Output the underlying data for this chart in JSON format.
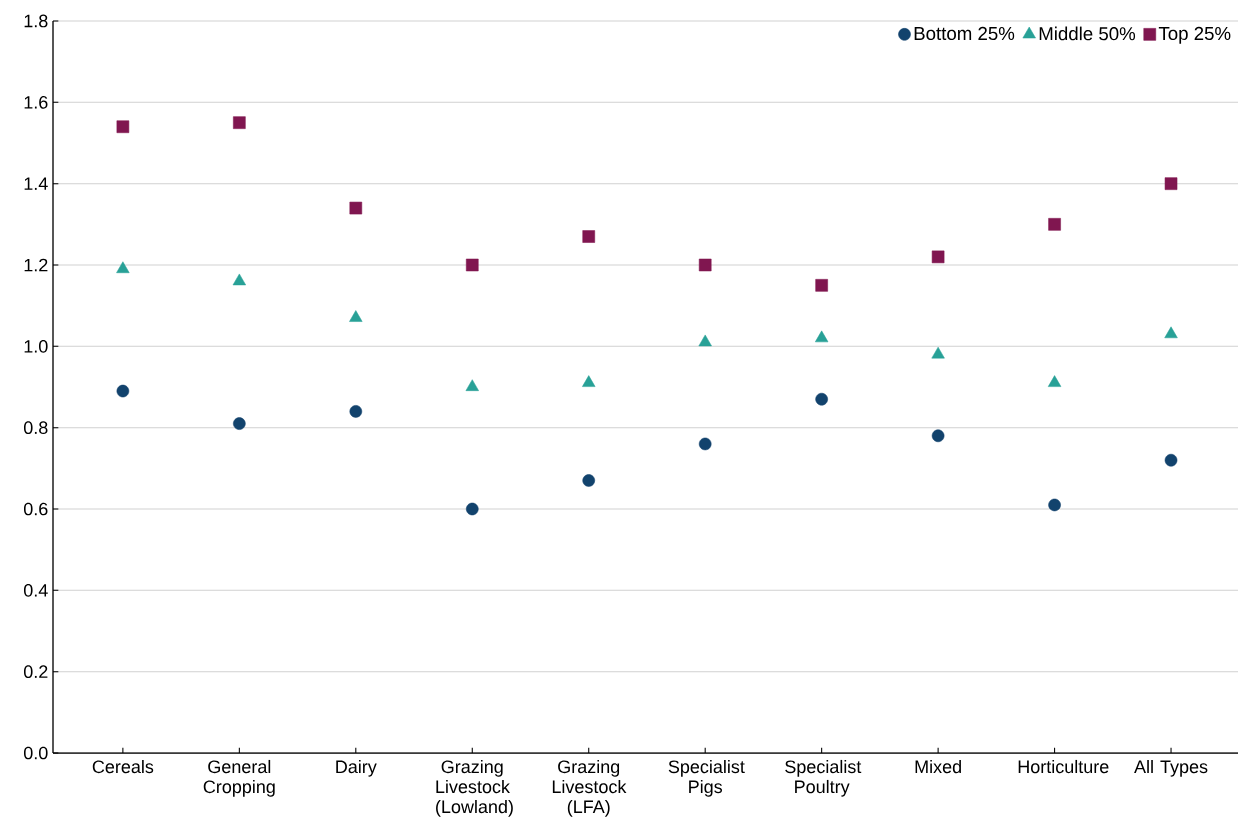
{
  "chart_data": {
    "type": "scatter",
    "categories": [
      "Cereals",
      "General Cropping",
      "Dairy",
      "Grazing Livestock (Lowland)",
      "Grazing Livestock (LFA)",
      "Specialist Pigs",
      "Specialist Poultry",
      "Mixed",
      "Horticulture",
      "All Types"
    ],
    "series": [
      {
        "name": "Bottom 25%",
        "color": "#12436d",
        "marker": "circle",
        "values": [
          0.89,
          0.81,
          0.84,
          0.6,
          0.67,
          0.76,
          0.87,
          0.78,
          0.61,
          0.72
        ]
      },
      {
        "name": "Middle 50%",
        "color": "#28a197",
        "marker": "triangle",
        "values": [
          1.19,
          1.16,
          1.07,
          0.9,
          0.91,
          1.01,
          1.02,
          0.98,
          0.91,
          1.03
        ]
      },
      {
        "name": "Top 25%",
        "color": "#801650",
        "marker": "square",
        "values": [
          1.54,
          1.55,
          1.34,
          1.2,
          1.27,
          1.2,
          1.15,
          1.22,
          1.3,
          1.4
        ]
      }
    ],
    "ylim": [
      0,
      1.8
    ],
    "yticks": [
      {
        "value": 0,
        "label": "0.0"
      },
      0.2,
      0.4,
      0.6,
      0.8,
      {
        "value": 1,
        "label": "1.0"
      },
      1.2,
      1.4,
      1.6,
      1.8
    ],
    "grid": "y",
    "legend": "top right"
  }
}
